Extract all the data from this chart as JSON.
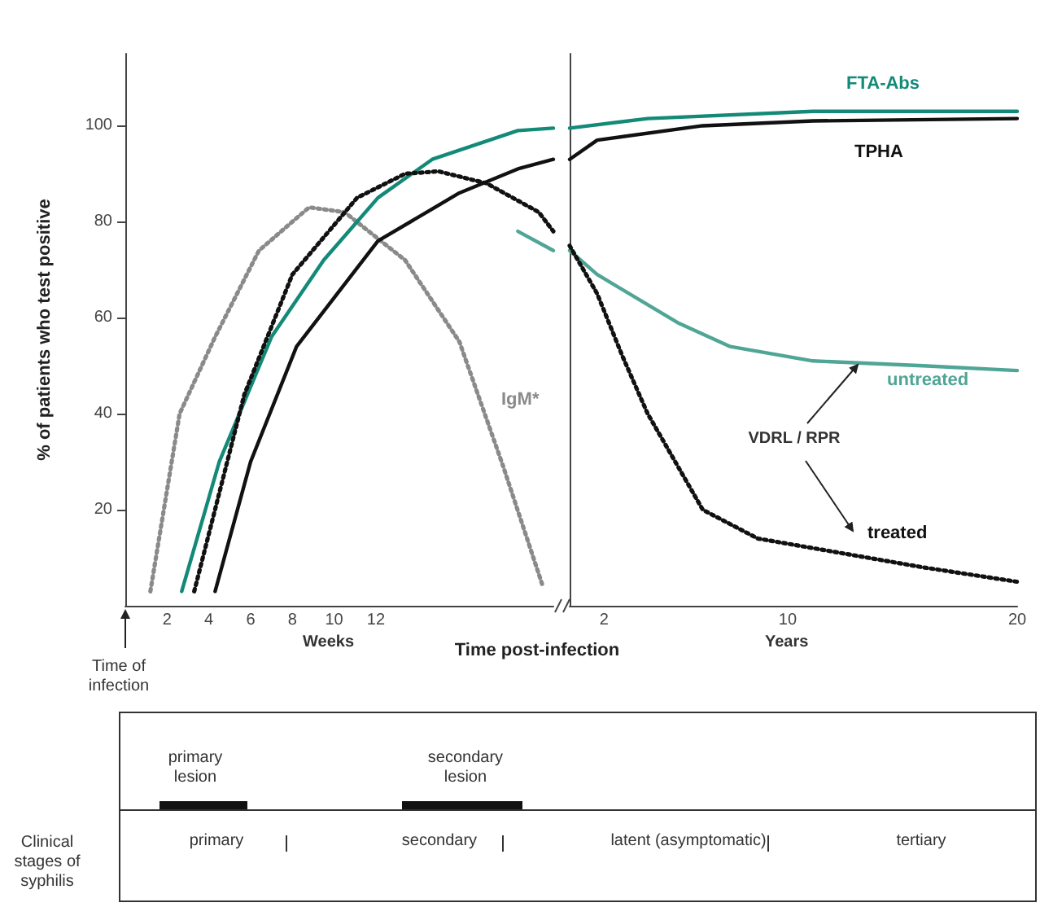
{
  "chart_data": [
    {
      "type": "line",
      "ylabel": "% of patients who test positive",
      "xlabel": "Time post-infection",
      "xlim": [
        0,
        20.5
      ],
      "ylim": [
        0,
        115
      ],
      "xticks": [
        2,
        4,
        6,
        8,
        10,
        12
      ],
      "yticks": [
        20,
        40,
        60,
        80,
        100
      ],
      "grid": false,
      "legend": false,
      "marker": "none",
      "series": [
        {
          "name": "IgM*",
          "color": "#8a8a8a",
          "line_style": "dotted",
          "x": [
            1.2,
            2.6,
            4.3,
            6.4,
            8.8,
            10.5,
            13.4,
            16,
            18.1,
            20
          ],
          "values": [
            3,
            40,
            56,
            74,
            83,
            82,
            72,
            55,
            29,
            4
          ]
        },
        {
          "color": "#138a78",
          "x": [
            2.7,
            4.5,
            7,
            9.5,
            12.1,
            14.7,
            18.8,
            20.5
          ],
          "values": [
            3,
            30,
            56,
            72,
            85,
            93,
            99,
            99.5
          ]
        },
        {
          "color": "#111111",
          "x": [
            4.3,
            6,
            8.2,
            12.1,
            16,
            18.8,
            20.5
          ],
          "values": [
            3,
            30,
            54,
            76,
            86,
            91,
            93
          ]
        },
        {
          "color": "#4fa596",
          "x": [
            18.8,
            20.5
          ],
          "values": [
            78,
            74
          ]
        },
        {
          "color": "#111111",
          "line_style": "dotted",
          "x": [
            3.3,
            5.7,
            8,
            11.1,
            13.4,
            15,
            17.3,
            19.8,
            20.5
          ],
          "values": [
            3,
            44,
            69,
            85,
            90,
            90.5,
            88,
            82,
            78
          ]
        }
      ],
      "annotations": [
        "Time of infection",
        "Weeks",
        "primary lesion",
        "secondary lesion",
        "Clinical stages of syphilis",
        "primary",
        "secondary",
        "latent (asymptomatic)",
        "tertiary"
      ]
    },
    {
      "type": "line",
      "xlim": [
        0.5,
        20
      ],
      "ylim": [
        0,
        115
      ],
      "xticks": [
        2,
        10,
        20
      ],
      "tick_labels": "x",
      "grid": false,
      "legend": false,
      "marker": "none",
      "series": [
        {
          "name": "FTA-Abs",
          "color": "#138a78",
          "x": [
            0.5,
            3.9,
            11.1,
            20
          ],
          "values": [
            99.5,
            101.5,
            103,
            103
          ]
        },
        {
          "name": "TPHA",
          "color": "#111111",
          "x": [
            0.5,
            1.7,
            6.3,
            11.1,
            20
          ],
          "values": [
            93,
            97,
            100,
            101,
            101.5
          ]
        },
        {
          "name": "untreated",
          "color": "#4fa596",
          "x": [
            0.5,
            1.7,
            5.2,
            7.5,
            11.1,
            15.9,
            20
          ],
          "values": [
            74,
            69,
            59,
            54,
            51,
            50,
            49
          ]
        },
        {
          "name": "treated",
          "color": "#111111",
          "line_style": "dotted",
          "x": [
            0.5,
            1.7,
            2.8,
            3.9,
            5.1,
            6.3,
            8.7,
            11.1,
            15.9,
            20
          ],
          "values": [
            75,
            65,
            52,
            40,
            30,
            20,
            14,
            12,
            8,
            5
          ]
        }
      ],
      "annotations": [
        "VDRL / RPR",
        "Years"
      ]
    }
  ]
}
